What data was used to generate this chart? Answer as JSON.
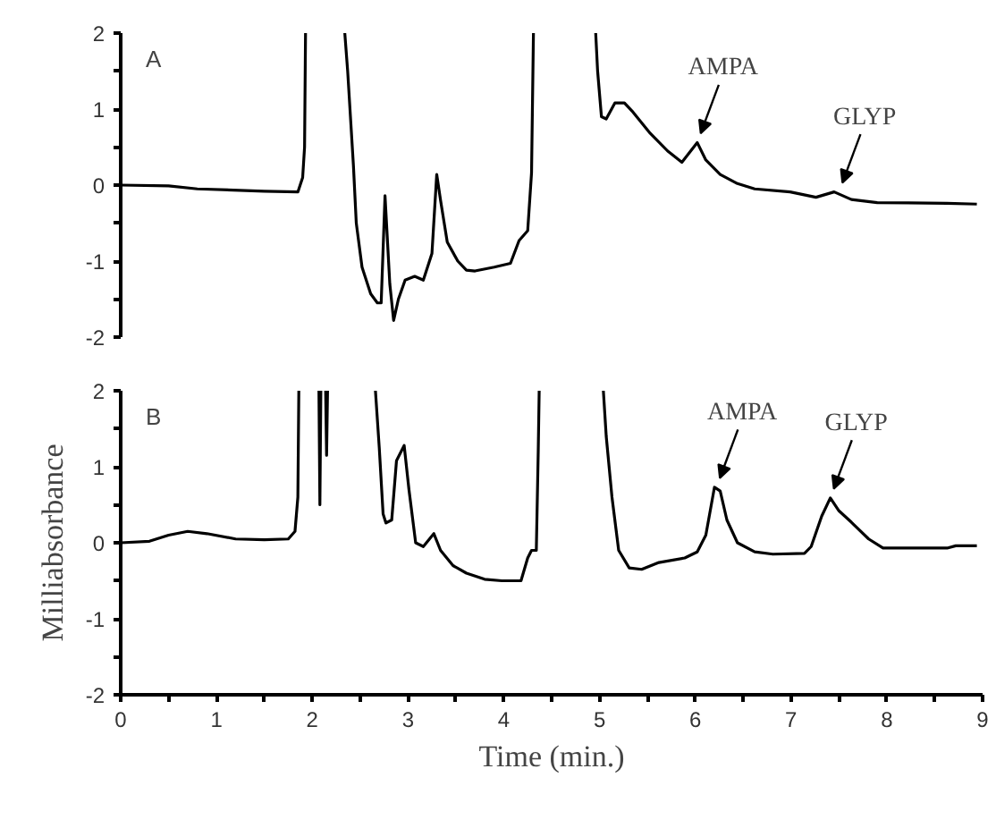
{
  "chart_data": [
    {
      "type": "line",
      "title": "A",
      "tick_labels": "y",
      "grid": false,
      "xlim": [
        0,
        9
      ],
      "ylim": [
        -2,
        2
      ],
      "yticks": [
        -2,
        {
          "value": -1.5,
          "label": null
        },
        -1,
        {
          "value": -0.5,
          "label": null
        },
        0,
        {
          "value": 0.5,
          "label": null
        },
        1,
        {
          "value": 1.5,
          "label": null
        },
        2
      ],
      "series": [
        {
          "color": "#000000",
          "x": [
            0,
            0.5,
            0.8,
            1.5,
            1.85,
            1.9,
            1.92,
            1.93,
            2.1,
            2.34,
            2.37,
            2.43,
            2.46,
            2.52,
            2.61,
            2.68,
            2.72,
            2.76,
            2.81,
            2.85,
            2.9,
            2.97,
            3.07,
            3.16,
            3.25,
            3.3,
            3.34,
            3.41,
            3.52,
            3.61,
            3.7,
            3.9,
            4.07,
            4.16,
            4.25,
            4.29,
            4.31,
            4.6,
            4.96,
            4.98,
            5.02,
            5.07,
            5.16,
            5.26,
            5.35,
            5.53,
            5.71,
            5.86,
            6.02,
            6.11,
            6.26,
            6.44,
            6.62,
            6.99,
            7.26,
            7.45,
            7.63,
            7.9,
            8.63,
            8.94
          ],
          "values": [
            0,
            -0.01,
            -0.05,
            -0.08,
            -0.09,
            0.1,
            0.5,
            2,
            null,
            2,
            1.5,
            0.26,
            -0.5,
            -1.08,
            -1.43,
            -1.55,
            -1.55,
            -0.14,
            -1.3,
            -1.78,
            -1.5,
            -1.25,
            -1.2,
            -1.25,
            -0.9,
            0.14,
            -0.2,
            -0.75,
            -1.0,
            -1.12,
            -1.13,
            -1.08,
            -1.03,
            -0.73,
            -0.6,
            0.16,
            2,
            null,
            2,
            1.5,
            0.9,
            0.87,
            1.08,
            1.08,
            0.96,
            0.68,
            0.45,
            0.3,
            0.56,
            0.33,
            0.14,
            0.02,
            -0.05,
            -0.09,
            -0.16,
            -0.09,
            -0.19,
            -0.23,
            -0.24,
            -0.25
          ]
        }
      ],
      "annotations": [
        {
          "text": "AMPA",
          "x": 6.02,
          "y": 0.56
        },
        {
          "text": "GLYP",
          "x": 7.5,
          "y": -0.09
        }
      ]
    },
    {
      "type": "line",
      "title": "B",
      "xlabel": "Time (min.)",
      "ylabel": "Milliabsorbance",
      "grid": false,
      "xlim": [
        0,
        9
      ],
      "ylim": [
        -2,
        2
      ],
      "xticks": [
        0,
        {
          "value": 0.5,
          "label": null
        },
        1,
        {
          "value": 1.5,
          "label": null
        },
        2,
        {
          "value": 2.5,
          "label": null
        },
        3,
        {
          "value": 3.5,
          "label": null
        },
        4,
        {
          "value": 4.5,
          "label": null
        },
        5,
        {
          "value": 5.5,
          "label": null
        },
        6,
        {
          "value": 6.5,
          "label": null
        },
        7,
        {
          "value": 7.5,
          "label": null
        },
        8,
        {
          "value": 8.5,
          "label": null
        },
        9
      ],
      "yticks": [
        -2,
        {
          "value": -1.5,
          "label": null
        },
        -1,
        {
          "value": -0.5,
          "label": null
        },
        0,
        {
          "value": 0.5,
          "label": null
        },
        1,
        {
          "value": 1.5,
          "label": null
        },
        2
      ],
      "series": [
        {
          "color": "#000000",
          "x": [
            0,
            0.3,
            0.5,
            0.7,
            0.9,
            1.2,
            1.5,
            1.75,
            1.82,
            1.85,
            1.86,
            1.96,
            2.07,
            2.08,
            2.09,
            2.12,
            2.14,
            2.15,
            2.16,
            2.4,
            2.66,
            2.7,
            2.74,
            2.77,
            2.83,
            2.88,
            2.96,
            3.01,
            3.08,
            3.16,
            3.27,
            3.34,
            3.47,
            3.61,
            3.8,
            3.98,
            4.18,
            4.25,
            4.29,
            4.34,
            4.36,
            4.37,
            4.7,
            5.04,
            5.07,
            5.13,
            5.2,
            5.31,
            5.44,
            5.62,
            5.89,
            6.02,
            6.11,
            6.2,
            6.26,
            6.33,
            6.44,
            6.62,
            6.81,
            7.14,
            7.21,
            7.32,
            7.41,
            7.5,
            7.63,
            7.81,
            7.96,
            8.63,
            8.72,
            8.94
          ],
          "values": [
            0,
            0.02,
            0.1,
            0.15,
            0.12,
            0.05,
            0.04,
            0.05,
            0.15,
            0.6,
            2,
            null,
            2,
            0.5,
            2,
            null,
            2,
            1.15,
            2,
            null,
            2,
            1.25,
            0.38,
            0.26,
            0.3,
            1.08,
            1.28,
            0.7,
            0.0,
            -0.05,
            0.12,
            -0.1,
            -0.3,
            -0.4,
            -0.48,
            -0.5,
            -0.5,
            -0.2,
            -0.1,
            -0.1,
            1.2,
            2,
            null,
            2,
            1.4,
            0.6,
            -0.1,
            -0.33,
            -0.35,
            -0.26,
            -0.2,
            -0.12,
            0.1,
            0.73,
            0.68,
            0.3,
            0.0,
            -0.12,
            -0.15,
            -0.14,
            -0.05,
            0.35,
            0.59,
            0.42,
            0.27,
            0.05,
            -0.07,
            -0.07,
            -0.04,
            -0.04
          ]
        }
      ],
      "annotations": [
        {
          "text": "AMPA",
          "x": 6.22,
          "y": 0.73
        },
        {
          "text": "GLYP",
          "x": 7.41,
          "y": 0.59
        }
      ]
    }
  ]
}
